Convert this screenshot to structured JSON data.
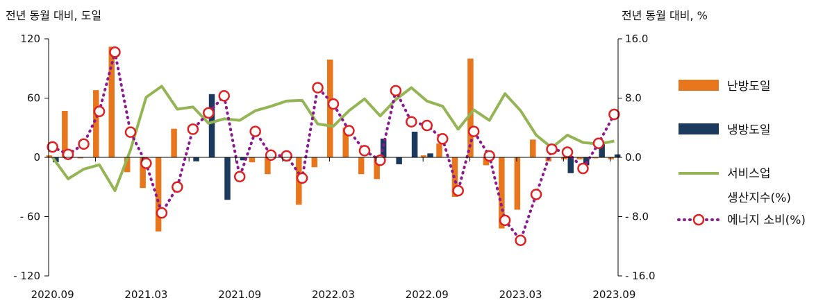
{
  "chart_data": {
    "type": "bar+line",
    "left_axis_title": "전년 동월 대비, 도일",
    "right_axis_title": "전년 동월 대비, %",
    "left_ylim": [
      -120,
      120
    ],
    "right_ylim": [
      -16,
      16
    ],
    "left_ticks": [
      {
        "value": 120,
        "label": "120"
      },
      {
        "value": 60,
        "label": "60"
      },
      {
        "value": 0,
        "label": "0"
      },
      {
        "value": -60,
        "label": "- 60"
      },
      {
        "value": -120,
        "label": "- 120"
      }
    ],
    "right_ticks": [
      {
        "value": 16,
        "label": "16.0"
      },
      {
        "value": 8,
        "label": "8.0"
      },
      {
        "value": 0,
        "label": "0.0"
      },
      {
        "value": -8,
        "label": "- 8.0"
      },
      {
        "value": -16,
        "label": "- 16.0"
      }
    ],
    "x_tick_labels": [
      {
        "index": 0,
        "label": "2020.09"
      },
      {
        "index": 6,
        "label": "2021.03"
      },
      {
        "index": 12,
        "label": "2021.09"
      },
      {
        "index": 18,
        "label": "2022.03"
      },
      {
        "index": 24,
        "label": "2022.09"
      },
      {
        "index": 30,
        "label": "2023.03"
      },
      {
        "index": 36,
        "label": "2023.09"
      }
    ],
    "categories": [
      "2020.09",
      "2020.10",
      "2020.11",
      "2020.12",
      "2021.01",
      "2021.02",
      "2021.03",
      "2021.04",
      "2021.05",
      "2021.06",
      "2021.07",
      "2021.08",
      "2021.09",
      "2021.10",
      "2021.11",
      "2021.12",
      "2022.01",
      "2022.02",
      "2022.03",
      "2022.04",
      "2022.05",
      "2022.06",
      "2022.07",
      "2022.08",
      "2022.09",
      "2022.10",
      "2022.11",
      "2022.12",
      "2023.01",
      "2023.02",
      "2023.03",
      "2023.04",
      "2023.05",
      "2023.06",
      "2023.07",
      "2023.08",
      "2023.09"
    ],
    "series": [
      {
        "name": "난방도일",
        "type": "bar",
        "axis": "left",
        "color": "#E8761C",
        "values": [
          2,
          47,
          -1,
          68,
          112,
          -15,
          -31,
          -75,
          29,
          0,
          0,
          0,
          0,
          -5,
          -17,
          0,
          -48,
          -10,
          99,
          30,
          -17,
          -22,
          0,
          0,
          2,
          14,
          -40,
          100,
          -8,
          -72,
          -53,
          18,
          -4,
          -2,
          -2,
          -1,
          -2
        ]
      },
      {
        "name": "냉방도일",
        "type": "bar",
        "axis": "left",
        "color": "#1B3A5E",
        "values": [
          -5,
          0,
          0,
          0,
          0,
          0,
          0,
          0,
          0,
          -4,
          64,
          -43,
          -3,
          0,
          0,
          0,
          0,
          0,
          0,
          0,
          0,
          19,
          -7,
          26,
          4,
          0,
          0,
          0,
          0,
          0,
          0,
          0,
          0,
          -16,
          -8,
          14,
          3
        ]
      },
      {
        "name": "서비스업 생산지수(%)",
        "type": "line",
        "axis": "right",
        "color": "#93B553",
        "values": [
          0.0,
          -2.9,
          -1.6,
          -1.0,
          -4.5,
          1.0,
          8.1,
          9.6,
          6.5,
          6.8,
          4.6,
          5.2,
          5.0,
          6.3,
          6.9,
          7.6,
          7.7,
          4.5,
          4.2,
          6.3,
          7.9,
          5.6,
          7.8,
          9.4,
          7.6,
          6.9,
          3.8,
          6.4,
          5.0,
          8.6,
          6.3,
          3.0,
          1.3,
          3.0,
          2.0,
          1.8,
          2.2
        ]
      },
      {
        "name": "에너지 소비(%)",
        "type": "line-dotted-markers",
        "axis": "right",
        "color": "#8B1A8E",
        "marker_color": "#E02020",
        "values": [
          1.4,
          0.4,
          1.8,
          6.2,
          14.2,
          3.4,
          -0.8,
          -7.5,
          -4.0,
          3.8,
          6.0,
          8.3,
          -2.6,
          3.5,
          0.3,
          0.2,
          -2.8,
          9.4,
          7.2,
          3.6,
          0.9,
          -0.4,
          9.0,
          4.8,
          4.3,
          2.5,
          -4.5,
          3.5,
          0.2,
          -8.5,
          -11.2,
          -5.0,
          1.1,
          0.7,
          -1.5,
          1.9,
          5.8
        ]
      }
    ],
    "legend": {
      "placement": "right",
      "entries": [
        "난방도일",
        "냉방도일",
        "서비스업",
        "생산지수(%)",
        "에너지 소비(%)"
      ]
    }
  }
}
